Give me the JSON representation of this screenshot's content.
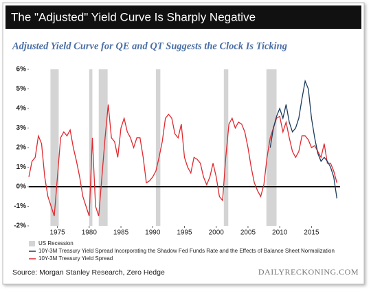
{
  "chart_data": {
    "type": "line",
    "title": "The \"Adjusted\" Yield Curve Is Sharply Negative",
    "subtitle": "Adjusted Yield Curve for QE and QT Suggests the Clock Is Ticking",
    "source": "Source: Morgan Stanley Research, Zero Hedge",
    "brand": "DAILYRECKONING.COM",
    "xlim": [
      1970.5,
      2019.5
    ],
    "xticks": [
      1975,
      1980,
      1985,
      1990,
      1995,
      2000,
      2005,
      2010,
      2015
    ],
    "ylim": [
      -2,
      6
    ],
    "yticks": [
      {
        "value": -2,
        "label": "-2%"
      },
      {
        "value": -1,
        "label": "-1%"
      },
      {
        "value": 0,
        "label": "0%"
      },
      {
        "value": 1,
        "label": "1%"
      },
      {
        "value": 2,
        "label": "2%"
      },
      {
        "value": 3,
        "label": "3%"
      },
      {
        "value": 4,
        "label": "4%"
      },
      {
        "value": 5,
        "label": "5%"
      },
      {
        "value": 6,
        "label": "6%"
      }
    ],
    "recession": {
      "name": "US Recession",
      "color": "#d4d4d4",
      "periods": [
        [
          1973.9,
          1975.2
        ],
        [
          1980.0,
          1980.5
        ],
        [
          1981.5,
          1982.9
        ],
        [
          1990.5,
          1991.2
        ],
        [
          2001.2,
          2001.9
        ],
        [
          2007.9,
          2009.5
        ]
      ]
    },
    "series": [
      {
        "name": "10Y-3M Treasury Yield Spread Incorporating the Shadow Fed Funds Rate and the Effects of Balance Sheet Normalization",
        "color": "#1b3a5c",
        "x": [
          2008.5,
          2009,
          2009.5,
          2010,
          2010.5,
          2011,
          2011.5,
          2012,
          2012.5,
          2013,
          2013.5,
          2014,
          2014.5,
          2015,
          2015.5,
          2016,
          2016.5,
          2017,
          2017.5,
          2018,
          2018.5,
          2019
        ],
        "values": [
          2.0,
          3.0,
          3.6,
          4.0,
          3.5,
          4.2,
          3.3,
          2.8,
          3.0,
          3.5,
          4.5,
          5.4,
          5.0,
          3.5,
          2.5,
          1.7,
          1.3,
          1.5,
          1.3,
          1.0,
          0.5,
          -0.6
        ]
      },
      {
        "name": "10Y-3M Treasury Yield Spread",
        "color": "#e0282e",
        "x": [
          1970.5,
          1971,
          1971.5,
          1972,
          1972.5,
          1973,
          1973.5,
          1974,
          1974.5,
          1975,
          1975.5,
          1976,
          1976.5,
          1977,
          1977.5,
          1978,
          1978.5,
          1979,
          1979.5,
          1980,
          1980.5,
          1981,
          1981.5,
          1982,
          1982.5,
          1983,
          1983.5,
          1984,
          1984.5,
          1985,
          1985.5,
          1986,
          1986.5,
          1987,
          1987.5,
          1988,
          1988.5,
          1989,
          1989.5,
          1990,
          1990.5,
          1991,
          1991.5,
          1992,
          1992.5,
          1993,
          1993.5,
          1994,
          1994.5,
          1995,
          1995.5,
          1996,
          1996.5,
          1997,
          1997.5,
          1998,
          1998.5,
          1999,
          1999.5,
          2000,
          2000.5,
          2001,
          2001.5,
          2002,
          2002.5,
          2003,
          2003.5,
          2004,
          2004.5,
          2005,
          2005.5,
          2006,
          2006.5,
          2007,
          2007.5,
          2008,
          2008.5,
          2009,
          2009.5,
          2010,
          2010.5,
          2011,
          2011.5,
          2012,
          2012.5,
          2013,
          2013.5,
          2014,
          2014.5,
          2015,
          2015.5,
          2016,
          2016.5,
          2017,
          2017.5,
          2018,
          2018.5,
          2019
        ],
        "values": [
          0.5,
          1.3,
          1.5,
          2.6,
          2.2,
          0.5,
          -0.5,
          -1.0,
          -1.5,
          0.5,
          2.5,
          2.8,
          2.6,
          2.9,
          2.0,
          1.3,
          0.5,
          -0.5,
          -1.0,
          -1.5,
          2.5,
          -1.0,
          -1.5,
          0.5,
          2.5,
          4.2,
          2.5,
          2.3,
          1.5,
          3.0,
          3.5,
          2.8,
          2.5,
          2.0,
          2.5,
          2.5,
          1.5,
          0.2,
          0.3,
          0.5,
          0.8,
          1.5,
          2.3,
          3.5,
          3.7,
          3.5,
          2.7,
          2.5,
          3.2,
          1.5,
          1.0,
          0.7,
          1.5,
          1.4,
          1.2,
          0.5,
          0.1,
          0.5,
          1.2,
          0.5,
          -0.5,
          -0.7,
          1.5,
          3.2,
          3.5,
          3.0,
          3.3,
          3.2,
          2.8,
          2.0,
          1.0,
          0.2,
          -0.2,
          -0.5,
          0.1,
          1.5,
          2.5,
          3.0,
          3.5,
          3.6,
          2.8,
          3.3,
          2.5,
          1.8,
          1.5,
          1.8,
          2.6,
          2.6,
          2.4,
          2.0,
          2.1,
          1.8,
          1.5,
          2.2,
          1.2,
          1.2,
          0.8,
          0.2
        ]
      }
    ]
  }
}
